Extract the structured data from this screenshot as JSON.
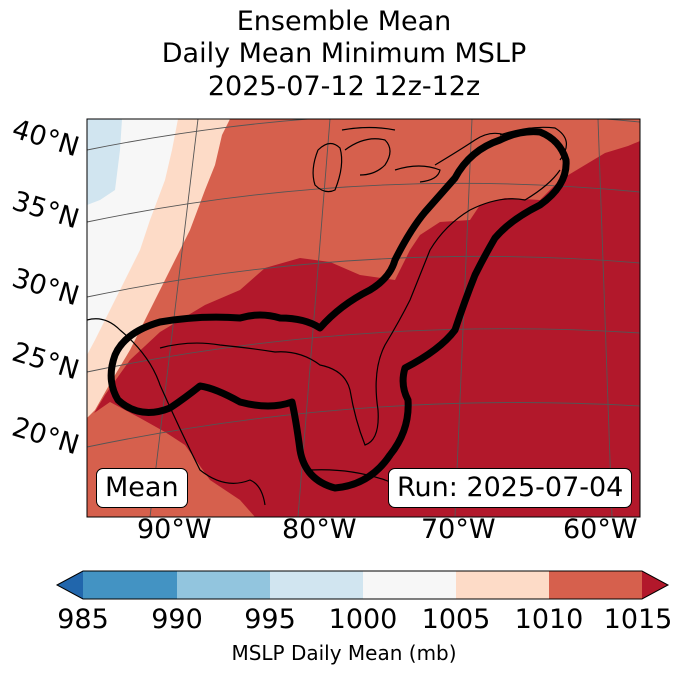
{
  "title": {
    "line1": "Ensemble Mean",
    "line2": "Daily Mean Minimum MSLP",
    "line3": "2025-07-12 12z-12z"
  },
  "map": {
    "lat_labels": [
      "40°N",
      "35°N",
      "30°N",
      "25°N",
      "20°N"
    ],
    "lon_labels": [
      "90°W",
      "80°W",
      "70°W",
      "60°W"
    ],
    "mean_label": "Mean",
    "run_label": "Run: 2025-07-04"
  },
  "colorbar": {
    "ticks": [
      "985",
      "990",
      "995",
      "1000",
      "1005",
      "1010",
      "1015"
    ],
    "label": "MSLP Daily Mean (mb)",
    "colors": {
      "under": "#2166ac",
      "985-990": "#4393c3",
      "990-995": "#92c5de",
      "995-1000": "#d1e5f0",
      "1000-1005": "#f7f7f7",
      "1005-1010": "#fddbc7",
      "1010-1015": "#d6604d",
      "over": "#b2182b"
    }
  }
}
